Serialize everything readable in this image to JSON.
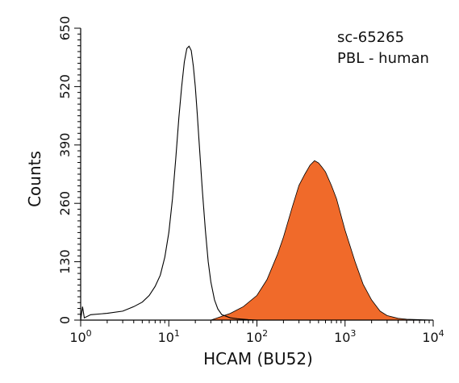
{
  "chart_data": {
    "type": "area",
    "annotations": [
      "sc-65265",
      "PBL - human"
    ],
    "xlabel": "HCAM (BU52)",
    "ylabel": "Counts",
    "x_scale": "log",
    "xlim": [
      1,
      10000
    ],
    "ylim": [
      0,
      650
    ],
    "yticks": [
      0,
      130,
      260,
      390,
      520,
      650
    ],
    "xticks": [
      {
        "value": 1,
        "base": "10",
        "exp": "0"
      },
      {
        "value": 10,
        "base": "10",
        "exp": "1"
      },
      {
        "value": 100,
        "base": "10",
        "exp": "2"
      },
      {
        "value": 1000,
        "base": "10",
        "exp": "3"
      },
      {
        "value": 10000,
        "base": "10",
        "exp": "4"
      }
    ],
    "grid": false,
    "series": [
      {
        "style": "outline",
        "color": "#000000",
        "x": [
          1.0,
          1.05,
          1.1,
          1.3,
          2,
          3,
          4,
          5,
          6,
          7,
          8,
          9,
          10,
          11,
          12,
          13,
          14,
          15,
          16,
          17,
          18,
          19,
          20,
          21,
          22,
          24,
          26,
          28,
          30,
          33,
          36,
          40,
          50,
          60,
          70,
          80,
          100
        ],
        "y": [
          0,
          30,
          5,
          12,
          15,
          20,
          30,
          40,
          55,
          75,
          100,
          140,
          195,
          270,
          360,
          450,
          520,
          575,
          605,
          610,
          600,
          565,
          520,
          460,
          400,
          290,
          200,
          130,
          85,
          45,
          25,
          12,
          5,
          3,
          2,
          1,
          0
        ]
      },
      {
        "style": "filled",
        "color": "#F06A2A",
        "x": [
          30,
          50,
          70,
          100,
          130,
          170,
          200,
          250,
          300,
          350,
          400,
          450,
          500,
          550,
          600,
          700,
          800,
          1000,
          1300,
          1600,
          2000,
          2500,
          3000,
          4000,
          5000,
          7000,
          10000
        ],
        "y": [
          0,
          15,
          30,
          55,
          90,
          145,
          185,
          250,
          300,
          325,
          345,
          355,
          350,
          340,
          330,
          300,
          270,
          200,
          130,
          80,
          45,
          20,
          10,
          4,
          2,
          1,
          0
        ]
      }
    ]
  }
}
